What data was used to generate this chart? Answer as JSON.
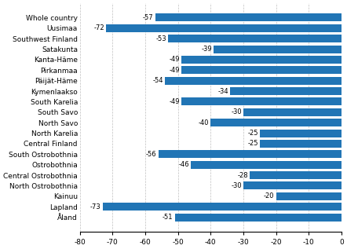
{
  "categories": [
    "Whole country",
    "Uusimaa",
    "Southwest Finland",
    "Satakunta",
    "Kanta-Häme",
    "Pirkanmaa",
    "Päijät-Häme",
    "Kymenlaakso",
    "South Karelia",
    "South Savo",
    "North Savo",
    "North Karelia",
    "Central Finland",
    "South Ostrobothnia",
    "Ostrobothnia",
    "Central Ostrobothnia",
    "North Ostrobothnia",
    "Kainuu",
    "Lapland",
    "Åland"
  ],
  "values": [
    -57,
    -72,
    -53,
    -39,
    -49,
    -49,
    -54,
    -34,
    -49,
    -30,
    -40,
    -25,
    -25,
    -56,
    -46,
    -28,
    -30,
    -20,
    -73,
    -51
  ],
  "bar_color": "#2175b5",
  "xlim": [
    -80,
    0
  ],
  "xticks": [
    -80,
    -70,
    -60,
    -50,
    -40,
    -30,
    -20,
    -10,
    0
  ],
  "label_fontsize": 6.5,
  "tick_fontsize": 6.5,
  "value_fontsize": 6.0
}
